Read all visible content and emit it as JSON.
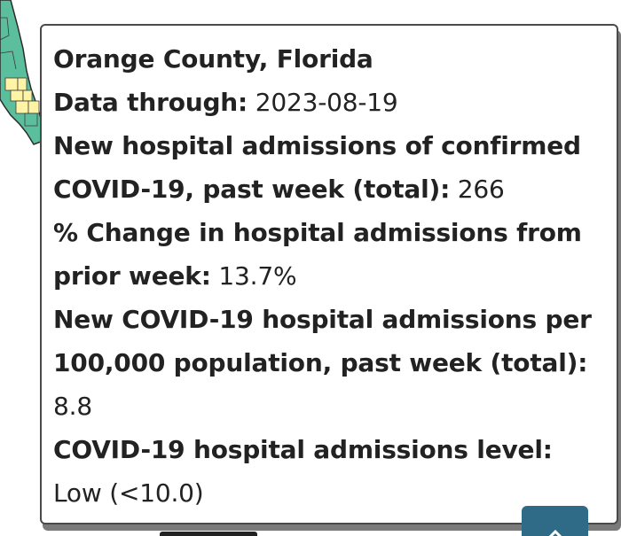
{
  "tooltip": {
    "title": "Orange County, Florida",
    "data_through_label": "Data through:",
    "data_through_value": "2023-08-19",
    "admissions_label_line1": "New hospital admissions of confirmed",
    "admissions_label_line2": "COVID-19, past week (total):",
    "admissions_value": "266",
    "change_label_line1": "% Change in hospital admissions from",
    "change_label_line2": "prior week:",
    "change_value": "13.7%",
    "per100k_label_line1": "New COVID-19 hospital admissions per",
    "per100k_label_line2": "100,000 population, past week (total):",
    "per100k_value": "8.8",
    "level_label": "COVID-19 hospital admissions level:",
    "level_value": "Low (<10.0)"
  },
  "colors": {
    "map_green": "#5bbf9e",
    "map_yellow": "#fff3a6",
    "scroll_button": "#2f6b86"
  },
  "icons": {
    "scroll_top": "chevron-up-icon"
  }
}
